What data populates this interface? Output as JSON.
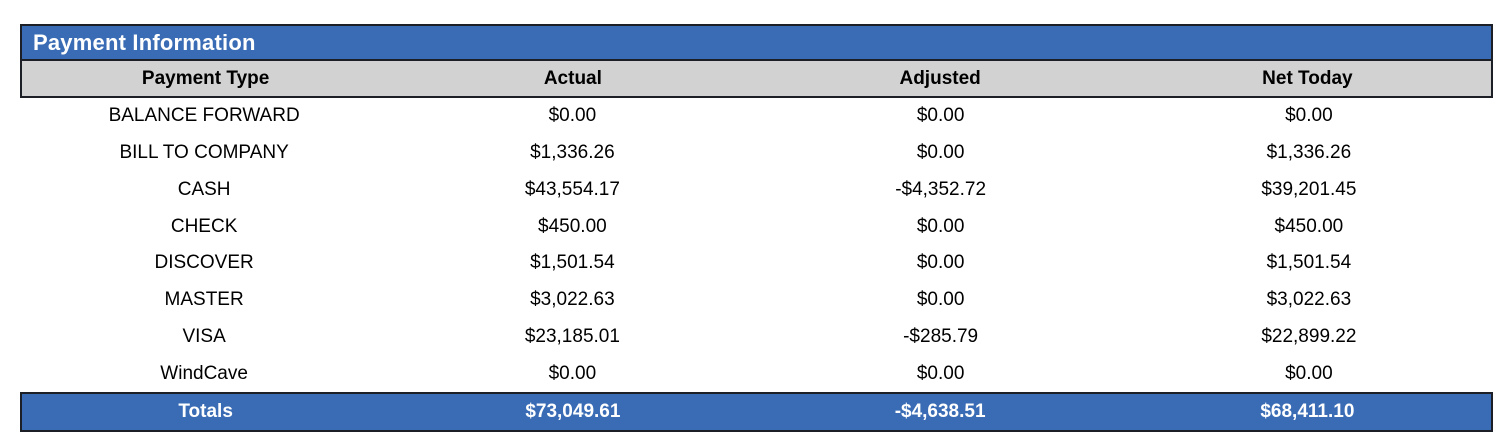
{
  "panel": {
    "title": "Payment Information"
  },
  "table": {
    "columns": [
      "Payment Type",
      "Actual",
      "Adjusted",
      "Net Today"
    ],
    "rows": [
      [
        "BALANCE FORWARD",
        "$0.00",
        "$0.00",
        "$0.00"
      ],
      [
        "BILL TO COMPANY",
        "$1,336.26",
        "$0.00",
        "$1,336.26"
      ],
      [
        "CASH",
        "$43,554.17",
        "-$4,352.72",
        "$39,201.45"
      ],
      [
        "CHECK",
        "$450.00",
        "$0.00",
        "$450.00"
      ],
      [
        "DISCOVER",
        "$1,501.54",
        "$0.00",
        "$1,501.54"
      ],
      [
        "MASTER",
        "$3,022.63",
        "$0.00",
        "$3,022.63"
      ],
      [
        "VISA",
        "$23,185.01",
        "-$285.79",
        "$22,899.22"
      ],
      [
        "WindCave",
        "$0.00",
        "$0.00",
        "$0.00"
      ]
    ],
    "totals": [
      "Totals",
      "$73,049.61",
      "-$4,638.51",
      "$68,411.10"
    ]
  },
  "colors": {
    "accent_blue": "#3a6cb5",
    "header_gray": "#d2d2d2",
    "border_dark": "#1c1f26",
    "body_text": "#000000",
    "inverse_text": "#ffffff"
  }
}
